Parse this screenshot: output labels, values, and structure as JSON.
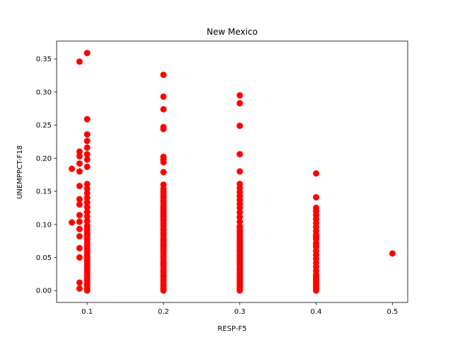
{
  "chart_data": {
    "type": "scatter",
    "title": "New Mexico",
    "xlabel": "RESP-F5",
    "ylabel": "UNEMPPCT-F18",
    "xlim": [
      0.06,
      0.52
    ],
    "ylim": [
      -0.018,
      0.377
    ],
    "xticks": [
      {
        "value": 0.1,
        "label": "0.1"
      },
      {
        "value": 0.2,
        "label": "0.2"
      },
      {
        "value": 0.3,
        "label": "0.3"
      },
      {
        "value": 0.4,
        "label": "0.4"
      },
      {
        "value": 0.5,
        "label": "0.5"
      }
    ],
    "yticks": [
      {
        "value": 0.0,
        "label": "0.00"
      },
      {
        "value": 0.05,
        "label": "0.05"
      },
      {
        "value": 0.1,
        "label": "0.10"
      },
      {
        "value": 0.15,
        "label": "0.15"
      },
      {
        "value": 0.2,
        "label": "0.20"
      },
      {
        "value": 0.25,
        "label": "0.25"
      },
      {
        "value": 0.3,
        "label": "0.30"
      },
      {
        "value": 0.35,
        "label": "0.35"
      }
    ],
    "grid": false,
    "legend": "none",
    "marker_color": "#ff0000",
    "series": [
      {
        "x": [
          0.08,
          0.08,
          0.09,
          0.09,
          0.09,
          0.09,
          0.09,
          0.09,
          0.09,
          0.09,
          0.09,
          0.09,
          0.09,
          0.09,
          0.09,
          0.09,
          0.09,
          0.09,
          0.1,
          0.1,
          0.1,
          0.1,
          0.1,
          0.1,
          0.1,
          0.1,
          0.1,
          0.1,
          0.1,
          0.1,
          0.1,
          0.1,
          0.1,
          0.1,
          0.1,
          0.1,
          0.1,
          0.1,
          0.1,
          0.1,
          0.1,
          0.1,
          0.1,
          0.1,
          0.1,
          0.1,
          0.1,
          0.1,
          0.1,
          0.1,
          0.1,
          0.1,
          0.1,
          0.1,
          0.1,
          0.1,
          0.1,
          0.1,
          0.1,
          0.1,
          0.1,
          0.1,
          0.1,
          0.1,
          0.2,
          0.2,
          0.2,
          0.2,
          0.2,
          0.2,
          0.2,
          0.2,
          0.2,
          0.2,
          0.2,
          0.2,
          0.2,
          0.2,
          0.2,
          0.2,
          0.2,
          0.2,
          0.2,
          0.2,
          0.2,
          0.2,
          0.2,
          0.2,
          0.2,
          0.2,
          0.2,
          0.2,
          0.2,
          0.2,
          0.2,
          0.2,
          0.2,
          0.2,
          0.2,
          0.2,
          0.2,
          0.2,
          0.2,
          0.2,
          0.2,
          0.2,
          0.2,
          0.2,
          0.2,
          0.2,
          0.2,
          0.2,
          0.2,
          0.2,
          0.2,
          0.2,
          0.2,
          0.2,
          0.2,
          0.2,
          0.2,
          0.2,
          0.2,
          0.2,
          0.2,
          0.2,
          0.2,
          0.3,
          0.3,
          0.3,
          0.3,
          0.3,
          0.3,
          0.3,
          0.3,
          0.3,
          0.3,
          0.3,
          0.3,
          0.3,
          0.3,
          0.3,
          0.3,
          0.3,
          0.3,
          0.3,
          0.3,
          0.3,
          0.3,
          0.3,
          0.3,
          0.3,
          0.3,
          0.3,
          0.3,
          0.3,
          0.3,
          0.3,
          0.3,
          0.3,
          0.3,
          0.3,
          0.3,
          0.3,
          0.3,
          0.3,
          0.3,
          0.3,
          0.3,
          0.3,
          0.3,
          0.4,
          0.4,
          0.4,
          0.4,
          0.4,
          0.4,
          0.4,
          0.4,
          0.4,
          0.4,
          0.4,
          0.4,
          0.4,
          0.4,
          0.4,
          0.4,
          0.4,
          0.4,
          0.4,
          0.4,
          0.4,
          0.4,
          0.4,
          0.4,
          0.4,
          0.4,
          0.4,
          0.4,
          0.4,
          0.4,
          0.5
        ],
        "y": [
          0.184,
          0.103,
          0.346,
          0.21,
          0.203,
          0.192,
          0.18,
          0.138,
          0.13,
          0.114,
          0.104,
          0.082,
          0.064,
          0.05,
          0.012,
          0.003,
          0.158,
          0.093,
          0.359,
          0.259,
          0.236,
          0.226,
          0.216,
          0.206,
          0.198,
          0.187,
          0.161,
          0.154,
          0.147,
          0.14,
          0.133,
          0.126,
          0.119,
          0.112,
          0.105,
          0.098,
          0.091,
          0.084,
          0.077,
          0.07,
          0.063,
          0.056,
          0.049,
          0.042,
          0.035,
          0.028,
          0.021,
          0.014,
          0.007,
          0.0,
          0.003,
          0.01,
          0.017,
          0.024,
          0.031,
          0.038,
          0.045,
          0.052,
          0.059,
          0.066,
          0.073,
          0.08,
          0.087,
          0.094,
          0.326,
          0.293,
          0.274,
          0.247,
          0.244,
          0.202,
          0.198,
          0.194,
          0.179,
          0.16,
          0.15,
          0.143,
          0.136,
          0.129,
          0.122,
          0.115,
          0.108,
          0.101,
          0.094,
          0.087,
          0.08,
          0.073,
          0.066,
          0.059,
          0.052,
          0.045,
          0.038,
          0.031,
          0.024,
          0.017,
          0.01,
          0.004,
          0.0,
          0.002,
          0.007,
          0.014,
          0.021,
          0.028,
          0.035,
          0.042,
          0.049,
          0.056,
          0.063,
          0.07,
          0.077,
          0.084,
          0.091,
          0.098,
          0.105,
          0.112,
          0.119,
          0.126,
          0.133,
          0.14,
          0.147,
          0.154,
          0.125,
          0.118,
          0.111,
          0.076,
          0.069,
          0.062,
          0.041,
          0.295,
          0.283,
          0.249,
          0.206,
          0.18,
          0.161,
          0.155,
          0.149,
          0.143,
          0.137,
          0.131,
          0.125,
          0.118,
          0.111,
          0.104,
          0.097,
          0.09,
          0.083,
          0.076,
          0.069,
          0.062,
          0.055,
          0.048,
          0.041,
          0.034,
          0.027,
          0.02,
          0.013,
          0.006,
          0.0,
          0.003,
          0.01,
          0.017,
          0.024,
          0.031,
          0.038,
          0.045,
          0.052,
          0.059,
          0.066,
          0.073,
          0.08,
          0.087,
          0.094,
          0.177,
          0.141,
          0.125,
          0.12,
          0.114,
          0.108,
          0.102,
          0.096,
          0.09,
          0.084,
          0.078,
          0.072,
          0.066,
          0.06,
          0.054,
          0.048,
          0.042,
          0.036,
          0.03,
          0.024,
          0.018,
          0.012,
          0.006,
          0.0,
          0.003,
          0.009,
          0.015,
          0.021,
          0.081,
          0.069,
          0.056
        ]
      }
    ]
  }
}
